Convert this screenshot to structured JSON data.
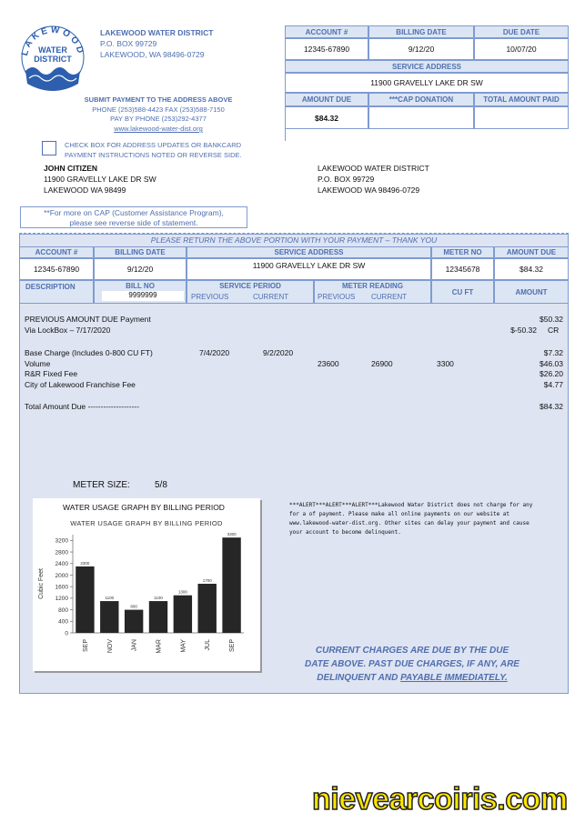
{
  "header": {
    "logo_top": "LAKEWOOD",
    "logo_mid": "WATER",
    "logo_bottom": "DISTRICT",
    "org_name": "LAKEWOOD WATER DISTRICT",
    "address1": "P.O. BOX 99729",
    "address2": "LAKEWOOD, WA 98496-0729"
  },
  "payment_info": {
    "line1": "SUBMIT PAYMENT TO THE ADDRESS ABOVE",
    "line2": "PHONE (253)588-4423 FAX (253)588-7150",
    "line3": "PAY BY PHONE (253)292-4377",
    "website": "www.lakewood-water-dist.org"
  },
  "checkbox": {
    "line1": "CHECK BOX FOR ADDRESS UPDATES OR BANKCARD",
    "line2": "PAYMENT INSTRUCTIONS NOTED OR REVERSE SIDE."
  },
  "customer": {
    "name": "JOHN CITIZEN",
    "street": "11900 GRAVELLY LAKE DR SW",
    "city": "LAKEWOOD WA 98499"
  },
  "remit_to": {
    "name": "LAKEWOOD WATER DISTRICT",
    "street": "P.O. BOX 99729",
    "city": "LAKEWOOD WA 98496-0729"
  },
  "cap_note": {
    "line1": "**For more on CAP (Customer Assistance Program),",
    "line2": "please see reverse side of statement."
  },
  "stub": {
    "headers": [
      "ACCOUNT #",
      "BILLING DATE",
      "DUE DATE"
    ],
    "values": [
      "12345-67890",
      "9/12/20",
      "10/07/20"
    ],
    "service_address_label": "SERVICE ADDRESS",
    "service_address": "11900 GRAVELLY LAKE DR SW",
    "payment_headers": [
      "AMOUNT DUE",
      "***CAP DONATION",
      "TOTAL AMOUNT PAID"
    ],
    "amount_due": "$84.32"
  },
  "return_note": "PLEASE RETURN THE ABOVE PORTION WITH YOUR PAYMENT – THANK YOU",
  "account": {
    "headers": [
      "ACCOUNT #",
      "BILLING DATE",
      "SERVICE ADDRESS",
      "METER NO",
      "AMOUNT DUE"
    ],
    "values": [
      "12345-67890",
      "9/12/20",
      "11900 GRAVELLY LAKE DR SW",
      "12345678",
      "$84.32"
    ]
  },
  "detail_headers": {
    "description": "DESCRIPTION",
    "bill_no": "BILL NO",
    "bill_no_value": "9999999",
    "service_period": "SERVICE PERIOD",
    "meter_reading": "METER READING",
    "previous": "PREVIOUS",
    "current": "CURRENT",
    "cu_ft": "CU FT",
    "amount": "AMOUNT"
  },
  "items": [
    {
      "description": "PREVIOUS AMOUNT DUE Payment",
      "amount": "$50.32"
    },
    {
      "description": "Via LockBox – 7/17/2020",
      "amount": "$-50.32",
      "note": "CR"
    },
    {
      "description": "Base Charge (Includes 0-800 CU FT)",
      "period_previous": "7/4/2020",
      "period_current": "9/2/2020",
      "amount": "$7.32"
    },
    {
      "description": "Volume",
      "meter_previous": 23600,
      "meter_current": 26900,
      "cu_ft": 3300,
      "amount": "$46.03"
    },
    {
      "description": "R&R Fixed Fee",
      "amount": "$26.20"
    },
    {
      "description": "City of Lakewood Franchise Fee",
      "amount": "$4.77"
    },
    {
      "description": "Total Amount Due --------------------",
      "amount": "$84.32"
    }
  ],
  "meter_size": {
    "label": "METER SIZE:",
    "value": "5/8"
  },
  "usage_panel": {
    "title": "WATER USAGE GRAPH BY BILLING PERIOD"
  },
  "chart_data": {
    "type": "bar",
    "title": "WATER USAGE GRAPH BY BILLING PERIOD",
    "y_label": "Cubic Feet",
    "categories": [
      "SEP",
      "NOV",
      "JAN",
      "MAR",
      "MAY",
      "JUL",
      "SEP"
    ],
    "values": [
      2300,
      1100,
      800,
      1100,
      1300,
      1700,
      3300
    ],
    "color": "#262626",
    "ylim": [
      0,
      3400
    ],
    "yticks": [
      0,
      400,
      800,
      1200,
      1600,
      2000,
      2400,
      2800,
      3200
    ],
    "grid": false
  },
  "alert": "***ALERT***ALERT***ALERT***Lakewood Water District does not charge for any for a of payment. Please make all online payments on our website at www.lakewood-water-dist.org. Other sites can delay your payment and cause your account to become delinquent.",
  "notice": {
    "lines": [
      "CURRENT CHARGES ARE DUE BY THE DUE",
      "DATE ABOVE. PAST DUE CHARGES, IF ANY, ARE",
      "DELINQUENT AND"
    ],
    "emphasis": "PAYABLE IMMEDIATELY."
  },
  "watermark": "nievearcoiris.com"
}
